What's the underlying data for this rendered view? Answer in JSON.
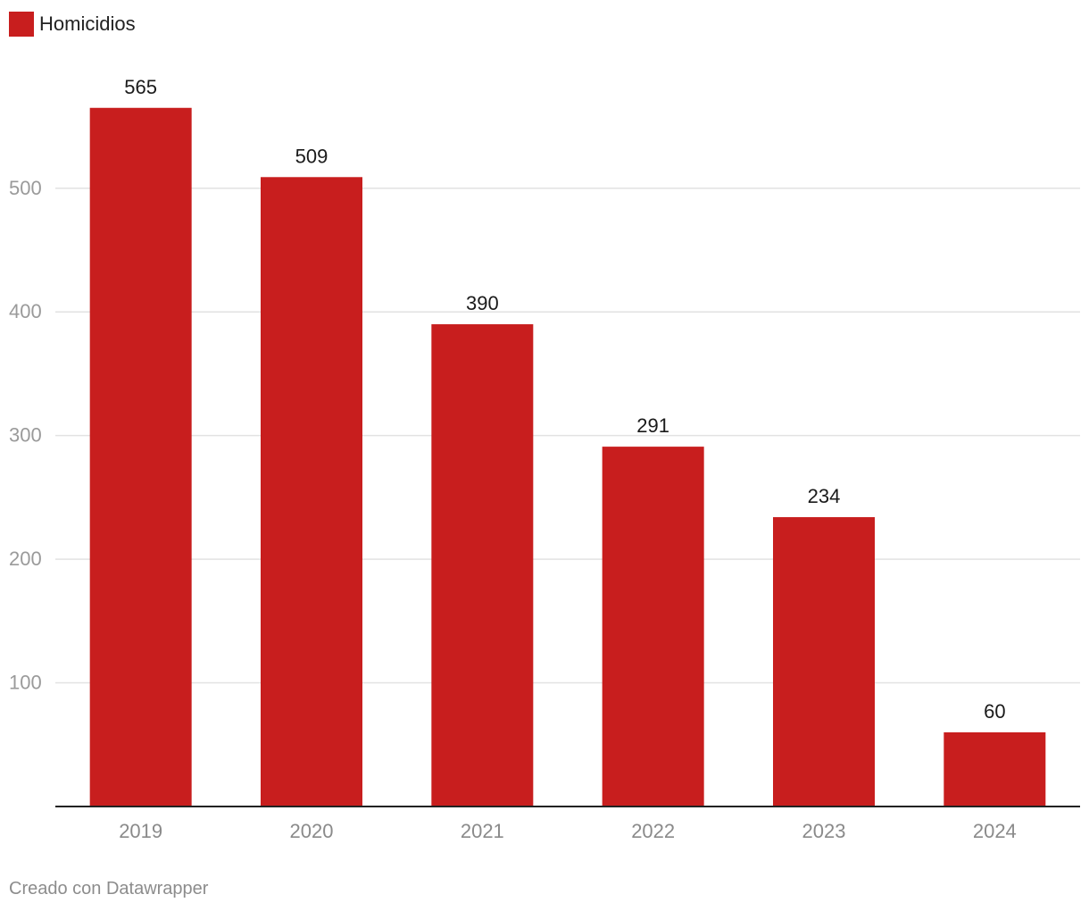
{
  "legend": {
    "label": "Homicidios",
    "color": "#c81e1e"
  },
  "credit": "Creado con Datawrapper",
  "chart_data": {
    "type": "bar",
    "categories": [
      "2019",
      "2020",
      "2021",
      "2022",
      "2023",
      "2024"
    ],
    "series": [
      {
        "name": "Homicidios",
        "values": [
          565,
          509,
          390,
          291,
          234,
          60
        ],
        "color": "#c81e1e"
      }
    ],
    "ylim": [
      0,
      600
    ],
    "yticks": [
      100,
      200,
      300,
      400,
      500
    ],
    "grid": true,
    "legend_position": "top-left",
    "data_labels": true
  }
}
